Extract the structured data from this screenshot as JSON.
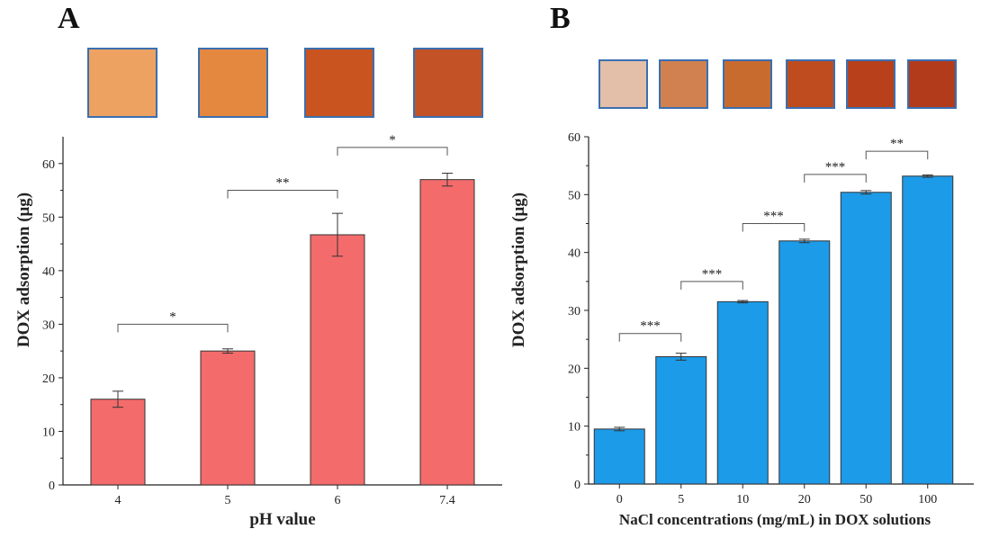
{
  "figure": {
    "panel_a_letter": "A",
    "panel_b_letter": "B"
  },
  "chart_data": [
    {
      "type": "bar",
      "panel": "A",
      "categories": [
        "4",
        "5",
        "6",
        "7.4"
      ],
      "series": [
        {
          "values": [
            16,
            25,
            46.7,
            57
          ],
          "errors": [
            1.5,
            0.4,
            4.0,
            1.2
          ]
        }
      ],
      "xlabel": "pH value",
      "ylabel": "DOX adsorption (μg)",
      "ylim": [
        0,
        65
      ],
      "yticks": [
        0,
        10,
        20,
        30,
        40,
        50,
        60
      ],
      "bar_color": "#f36b6b",
      "grid": false,
      "sample_swatches": [
        "#eda262",
        "#e5883f",
        "#c9541f",
        "#c35226"
      ],
      "significance": [
        {
          "from": 0,
          "to": 1,
          "label": "*",
          "level": 30
        },
        {
          "from": 1,
          "to": 2,
          "label": "**",
          "level": 55
        },
        {
          "from": 2,
          "to": 3,
          "label": "*",
          "level": 63
        }
      ]
    },
    {
      "type": "bar",
      "panel": "B",
      "categories": [
        "0",
        "5",
        "10",
        "20",
        "50",
        "100"
      ],
      "series": [
        {
          "values": [
            9.5,
            22,
            31.5,
            42,
            50.4,
            53.2
          ],
          "errors": [
            0.3,
            0.6,
            0.2,
            0.3,
            0.3,
            0.2
          ]
        }
      ],
      "xlabel": "NaCl concentrations (mg/mL) in DOX solutions",
      "ylabel": "DOX adsorption (μg)",
      "ylim": [
        0,
        60
      ],
      "yticks": [
        0,
        10,
        20,
        30,
        40,
        50,
        60
      ],
      "bar_color": "#1c9be8",
      "grid": false,
      "sample_swatches": [
        "#e3bfa9",
        "#d1814f",
        "#c86b2f",
        "#bf4c1f",
        "#b8401b",
        "#b23b1c"
      ],
      "significance": [
        {
          "from": 0,
          "to": 1,
          "label": "***",
          "level": 26
        },
        {
          "from": 1,
          "to": 2,
          "label": "***",
          "level": 35
        },
        {
          "from": 2,
          "to": 3,
          "label": "***",
          "level": 45
        },
        {
          "from": 3,
          "to": 4,
          "label": "***",
          "level": 53.5
        },
        {
          "from": 4,
          "to": 5,
          "label": "**",
          "level": 57.5
        }
      ]
    }
  ]
}
